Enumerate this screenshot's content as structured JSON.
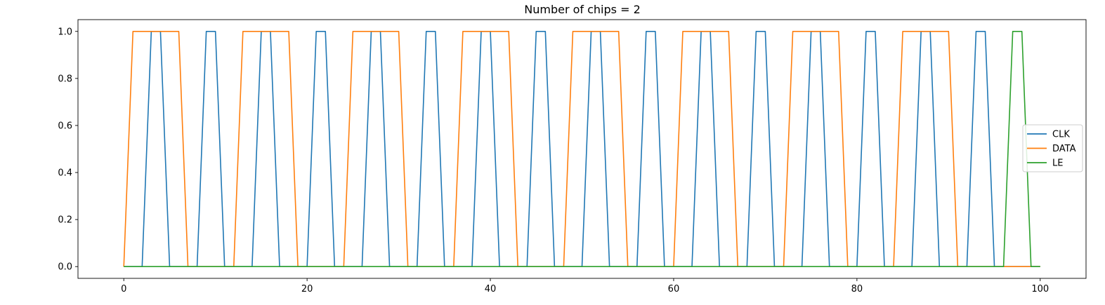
{
  "chart_data": {
    "type": "line",
    "title": "Number of chips = 2",
    "xlabel": "",
    "ylabel": "",
    "xlim": [
      -5,
      105
    ],
    "ylim": [
      -0.05,
      1.05
    ],
    "xticks": [
      0,
      20,
      40,
      60,
      80,
      100
    ],
    "xtick_labels": [
      "0",
      "20",
      "40",
      "60",
      "80",
      "100"
    ],
    "yticks": [
      0.0,
      0.2,
      0.4,
      0.6,
      0.8,
      1.0
    ],
    "ytick_labels": [
      "0.0",
      "0.2",
      "0.4",
      "0.6",
      "0.8",
      "1.0"
    ],
    "grid": false,
    "legend_position": "center-right",
    "series": [
      {
        "name": "CLK",
        "color": "#1f77b4",
        "x": [
          0,
          1,
          2,
          3,
          4,
          5,
          6,
          7,
          8,
          9,
          10,
          11,
          12,
          13,
          14,
          15,
          16,
          17,
          18,
          19,
          20,
          21,
          22,
          23,
          24,
          25,
          26,
          27,
          28,
          29,
          30,
          31,
          32,
          33,
          34,
          35,
          36,
          37,
          38,
          39,
          40,
          41,
          42,
          43,
          44,
          45,
          46,
          47,
          48,
          49,
          50,
          51,
          52,
          53,
          54,
          55,
          56,
          57,
          58,
          59,
          60,
          61,
          62,
          63,
          64,
          65,
          66,
          67,
          68,
          69,
          70,
          71,
          72,
          73,
          74,
          75,
          76,
          77,
          78,
          79,
          80,
          81,
          82,
          83,
          84,
          85,
          86,
          87,
          88,
          89,
          90,
          91,
          92,
          93,
          94,
          95,
          96,
          97,
          98,
          99,
          100
        ],
        "y": [
          0,
          0,
          0,
          1,
          1,
          0,
          0,
          0,
          0,
          1,
          1,
          0,
          0,
          0,
          0,
          1,
          1,
          0,
          0,
          0,
          0,
          1,
          1,
          0,
          0,
          0,
          0,
          1,
          1,
          0,
          0,
          0,
          0,
          1,
          1,
          0,
          0,
          0,
          0,
          1,
          1,
          0,
          0,
          0,
          0,
          1,
          1,
          0,
          0,
          0,
          0,
          1,
          1,
          0,
          0,
          0,
          0,
          1,
          1,
          0,
          0,
          0,
          0,
          1,
          1,
          0,
          0,
          0,
          0,
          1,
          1,
          0,
          0,
          0,
          0,
          1,
          1,
          0,
          0,
          0,
          0,
          1,
          1,
          0,
          0,
          0,
          0,
          1,
          1,
          0,
          0,
          0,
          0,
          1,
          1,
          0,
          0,
          0,
          0,
          0,
          0
        ]
      },
      {
        "name": "DATA",
        "color": "#ff7f0e",
        "x": [
          0,
          1,
          2,
          3,
          4,
          5,
          6,
          7,
          8,
          9,
          10,
          11,
          12,
          13,
          14,
          15,
          16,
          17,
          18,
          19,
          20,
          21,
          22,
          23,
          24,
          25,
          26,
          27,
          28,
          29,
          30,
          31,
          32,
          33,
          34,
          35,
          36,
          37,
          38,
          39,
          40,
          41,
          42,
          43,
          44,
          45,
          46,
          47,
          48,
          49,
          50,
          51,
          52,
          53,
          54,
          55,
          56,
          57,
          58,
          59,
          60,
          61,
          62,
          63,
          64,
          65,
          66,
          67,
          68,
          69,
          70,
          71,
          72,
          73,
          74,
          75,
          76,
          77,
          78,
          79,
          80,
          81,
          82,
          83,
          84,
          85,
          86,
          87,
          88,
          89,
          90,
          91,
          92,
          93,
          94,
          95,
          96,
          97,
          98,
          99,
          100
        ],
        "y": [
          0,
          1,
          1,
          1,
          1,
          1,
          1,
          0,
          0,
          0,
          0,
          0,
          0,
          1,
          1,
          1,
          1,
          1,
          1,
          0,
          0,
          0,
          0,
          0,
          0,
          1,
          1,
          1,
          1,
          1,
          1,
          0,
          0,
          0,
          0,
          0,
          0,
          1,
          1,
          1,
          1,
          1,
          1,
          0,
          0,
          0,
          0,
          0,
          0,
          1,
          1,
          1,
          1,
          1,
          1,
          0,
          0,
          0,
          0,
          0,
          0,
          1,
          1,
          1,
          1,
          1,
          1,
          0,
          0,
          0,
          0,
          0,
          0,
          1,
          1,
          1,
          1,
          1,
          1,
          0,
          0,
          0,
          0,
          0,
          0,
          1,
          1,
          1,
          1,
          1,
          1,
          0,
          0,
          0,
          0,
          0,
          0,
          0,
          0,
          0,
          0
        ]
      },
      {
        "name": "LE",
        "color": "#2ca02c",
        "x": [
          0,
          1,
          2,
          3,
          4,
          5,
          6,
          7,
          8,
          9,
          10,
          11,
          12,
          13,
          14,
          15,
          16,
          17,
          18,
          19,
          20,
          21,
          22,
          23,
          24,
          25,
          26,
          27,
          28,
          29,
          30,
          31,
          32,
          33,
          34,
          35,
          36,
          37,
          38,
          39,
          40,
          41,
          42,
          43,
          44,
          45,
          46,
          47,
          48,
          49,
          50,
          51,
          52,
          53,
          54,
          55,
          56,
          57,
          58,
          59,
          60,
          61,
          62,
          63,
          64,
          65,
          66,
          67,
          68,
          69,
          70,
          71,
          72,
          73,
          74,
          75,
          76,
          77,
          78,
          79,
          80,
          81,
          82,
          83,
          84,
          85,
          86,
          87,
          88,
          89,
          90,
          91,
          92,
          93,
          94,
          95,
          96,
          97,
          98,
          99,
          100
        ],
        "y": [
          0,
          0,
          0,
          0,
          0,
          0,
          0,
          0,
          0,
          0,
          0,
          0,
          0,
          0,
          0,
          0,
          0,
          0,
          0,
          0,
          0,
          0,
          0,
          0,
          0,
          0,
          0,
          0,
          0,
          0,
          0,
          0,
          0,
          0,
          0,
          0,
          0,
          0,
          0,
          0,
          0,
          0,
          0,
          0,
          0,
          0,
          0,
          0,
          0,
          0,
          0,
          0,
          0,
          0,
          0,
          0,
          0,
          0,
          0,
          0,
          0,
          0,
          0,
          0,
          0,
          0,
          0,
          0,
          0,
          0,
          0,
          0,
          0,
          0,
          0,
          0,
          0,
          0,
          0,
          0,
          0,
          0,
          0,
          0,
          0,
          0,
          0,
          0,
          0,
          0,
          0,
          0,
          0,
          0,
          0,
          0,
          0,
          1,
          1,
          0,
          0
        ]
      }
    ]
  }
}
